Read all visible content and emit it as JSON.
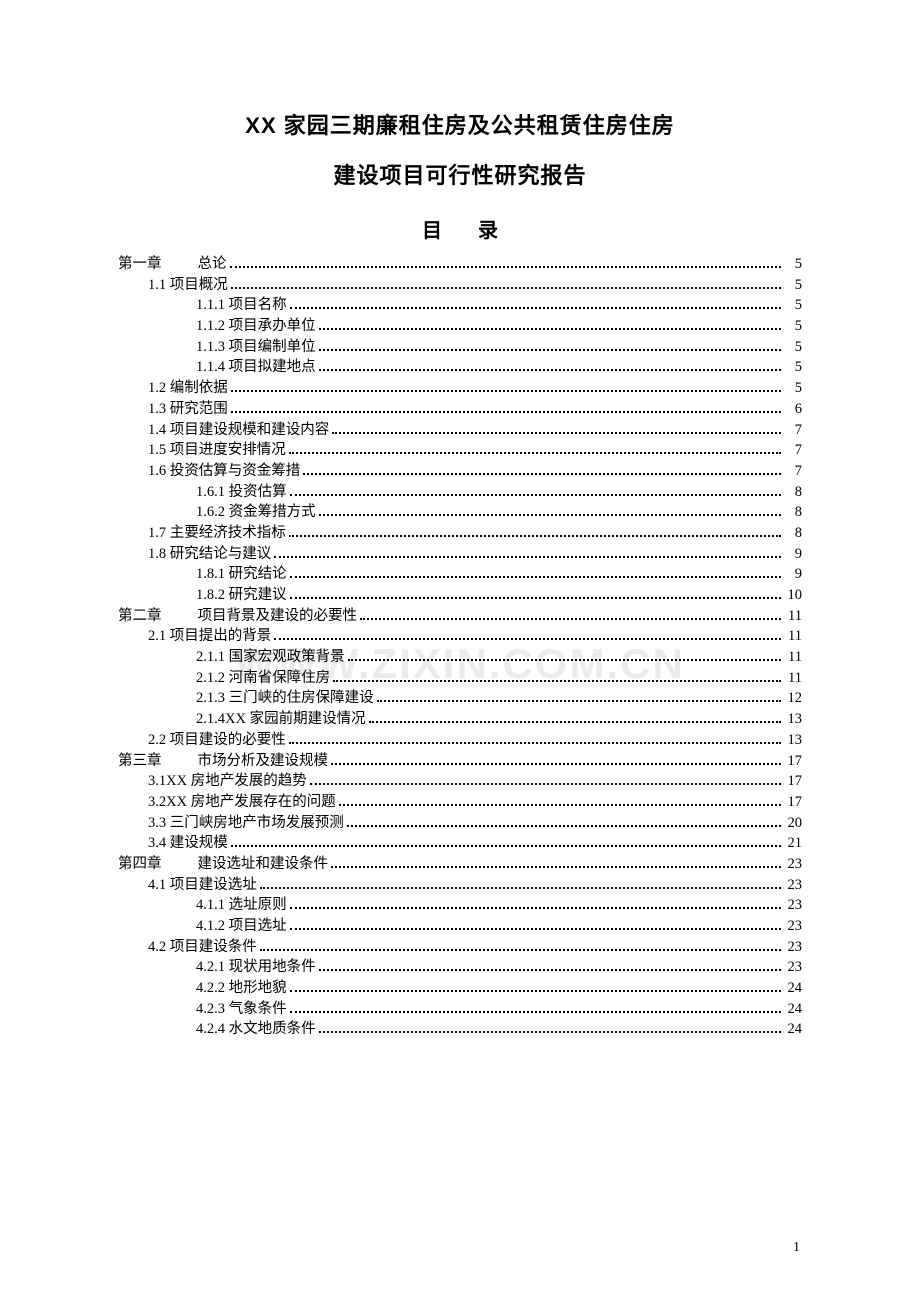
{
  "title_line1": "XX 家园三期廉租住房及公共租赁住房住房",
  "title_line2": "建设项目可行性研究报告",
  "toc_heading": "目录",
  "watermark": "WWW.ZIXIN.COM.CN",
  "page_number": "1",
  "toc": [
    {
      "level": 0,
      "chapter": "第一章",
      "title": "总论",
      "page": "5"
    },
    {
      "level": 1,
      "label": "1.1 项目概况",
      "page": "5"
    },
    {
      "level": 2,
      "label": "1.1.1 项目名称",
      "page": "5"
    },
    {
      "level": 2,
      "label": "1.1.2 项目承办单位",
      "page": "5"
    },
    {
      "level": 2,
      "label": "1.1.3 项目编制单位",
      "page": "5"
    },
    {
      "level": 2,
      "label": "1.1.4 项目拟建地点",
      "page": "5"
    },
    {
      "level": 1,
      "label": "1.2 编制依据",
      "page": "5"
    },
    {
      "level": 1,
      "label": "1.3 研究范围",
      "page": "6"
    },
    {
      "level": 1,
      "label": "1.4 项目建设规模和建设内容",
      "page": "7"
    },
    {
      "level": 1,
      "label": "1.5 项目进度安排情况",
      "page": "7"
    },
    {
      "level": 1,
      "label": "1.6 投资估算与资金筹措",
      "page": "7"
    },
    {
      "level": 2,
      "label": "1.6.1 投资估算",
      "page": "8"
    },
    {
      "level": 2,
      "label": "1.6.2 资金筹措方式",
      "page": "8"
    },
    {
      "level": 1,
      "label": "1.7 主要经济技术指标",
      "page": "8"
    },
    {
      "level": 1,
      "label": "1.8 研究结论与建议",
      "page": "9"
    },
    {
      "level": 2,
      "label": "1.8.1 研究结论",
      "page": "9"
    },
    {
      "level": 2,
      "label": "1.8.2 研究建议",
      "page": "10"
    },
    {
      "level": 0,
      "chapter": "第二章",
      "title": "项目背景及建设的必要性",
      "page": "11"
    },
    {
      "level": 1,
      "label": "2.1 项目提出的背景",
      "page": "11"
    },
    {
      "level": 2,
      "label": "2.1.1 国家宏观政策背景",
      "page": "11"
    },
    {
      "level": 2,
      "label": "2.1.2 河南省保障住房",
      "page": "11"
    },
    {
      "level": 2,
      "label": "2.1.3 三门峡的住房保障建设",
      "page": "12"
    },
    {
      "level": 2,
      "label": "2.1.4XX 家园前期建设情况",
      "page": "13"
    },
    {
      "level": 1,
      "label": "2.2 项目建设的必要性",
      "page": "13"
    },
    {
      "level": 0,
      "chapter": "第三章",
      "title": "市场分析及建设规模",
      "page": "17"
    },
    {
      "level": 1,
      "label": "3.1XX 房地产发展的趋势",
      "page": "17"
    },
    {
      "level": 1,
      "label": "3.2XX 房地产发展存在的问题",
      "page": "17"
    },
    {
      "level": 1,
      "label": "3.3 三门峡房地产市场发展预测",
      "page": "20"
    },
    {
      "level": 1,
      "label": "3.4 建设规模",
      "page": "21"
    },
    {
      "level": 0,
      "chapter": "第四章",
      "title": "建设选址和建设条件",
      "page": "23"
    },
    {
      "level": 1,
      "label": "4.1 项目建设选址",
      "page": "23"
    },
    {
      "level": 2,
      "label": "4.1.1 选址原则",
      "page": "23"
    },
    {
      "level": 2,
      "label": "4.1.2 项目选址",
      "page": "23"
    },
    {
      "level": 1,
      "label": "4.2 项目建设条件",
      "page": "23"
    },
    {
      "level": 2,
      "label": "4.2.1 现状用地条件",
      "page": "23"
    },
    {
      "level": 2,
      "label": "4.2.2 地形地貌",
      "page": "24"
    },
    {
      "level": 2,
      "label": "4.2.3 气象条件",
      "page": "24"
    },
    {
      "level": 2,
      "label": "4.2.4 水文地质条件",
      "page": "24"
    }
  ]
}
